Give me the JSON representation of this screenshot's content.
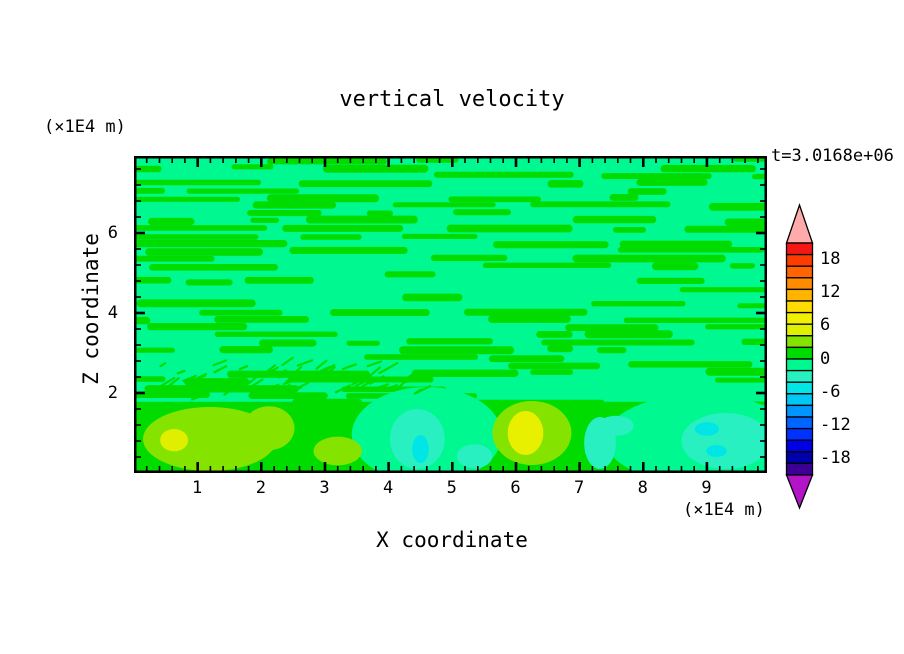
{
  "title": "vertical velocity",
  "time_label": "t=3.0168e+06",
  "y_axis_unit": "(×1E4 m)",
  "x_axis_unit": "(×1E4 m)",
  "x_axis_label": "X coordinate",
  "y_axis_label": "Z coordinate",
  "chart_data": {
    "type": "filled_contour",
    "title": "vertical velocity",
    "time_annotation": "t=3.0168e+06",
    "xlabel": "X coordinate",
    "ylabel": "Z coordinate",
    "axis_unit": "×1E4 m",
    "x_ticks": [
      "1",
      "2",
      "3",
      "4",
      "5",
      "6",
      "7",
      "8",
      "9"
    ],
    "y_ticks": [
      "2",
      "4",
      "6"
    ],
    "x_range": [
      0,
      9.94
    ],
    "y_range": [
      0,
      7.93
    ],
    "x_minor_step": 0.2,
    "y_minor_step": 0.4,
    "grid": false,
    "colorbar": {
      "labels": [
        "18",
        "12",
        "6",
        "0",
        "-6",
        "-12",
        "-18"
      ],
      "colors_top_to_bottom": [
        "#F51616",
        "#FF3C00",
        "#FF6400",
        "#FF8C00",
        "#FFB400",
        "#FFDC00",
        "#F0F000",
        "#DCF000",
        "#84E400",
        "#00DC00",
        "#00F890",
        "#28F0C0",
        "#00E6E6",
        "#00C8F5",
        "#0096FF",
        "#0064FF",
        "#0032FF",
        "#0000E6",
        "#0000AA",
        "#3C0096"
      ],
      "over_arrow_color": "#FFABAB",
      "under_arrow_color": "#B414C8",
      "position": "right"
    },
    "field": {
      "description": "near-zero horizontally-striped vertical velocity aloft with convective plumes below z=1.8e4 m",
      "background_color": "#00F890",
      "streak_color": "#00DC00",
      "band_top_z": 1.78
    },
    "striations": {
      "x0": 0.35,
      "x1": 4.4,
      "z0": 1.85,
      "z1": 2.75
    },
    "features": [
      {
        "name": "downdraft-region-mid",
        "cx": 4.6,
        "cz": 0.95,
        "rx": 1.18,
        "rz": 1.2,
        "color": "#00F890",
        "sign": "negative"
      },
      {
        "name": "downdraft-region-right",
        "cx": 8.9,
        "cz": 0.85,
        "rx": 1.5,
        "rz": 1.12,
        "color": "#00F890",
        "sign": "negative"
      },
      {
        "name": "updraft-plume-left",
        "cx": 1.19,
        "cz": 0.85,
        "rx": 1.05,
        "rz": 0.8,
        "color": "#84E400",
        "sign": "positive"
      },
      {
        "name": "updraft-plume-left-lobe",
        "cx": 2.12,
        "cz": 1.12,
        "rx": 0.4,
        "rz": 0.55,
        "color": "#84E400",
        "sign": "positive"
      },
      {
        "name": "updraft-plume-small",
        "cx": 3.2,
        "cz": 0.55,
        "rx": 0.38,
        "rz": 0.36,
        "color": "#84E400",
        "sign": "positive"
      },
      {
        "name": "updraft-plume-center",
        "cx": 6.25,
        "cz": 1.0,
        "rx": 0.62,
        "rz": 0.8,
        "color": "#84E400",
        "sign": "positive"
      },
      {
        "name": "updraft-core-left",
        "cx": 0.63,
        "cz": 0.82,
        "rx": 0.22,
        "rz": 0.28,
        "color": "#E0EE00",
        "sign": "positive"
      },
      {
        "name": "updraft-core-center",
        "cx": 6.15,
        "cz": 1.0,
        "rx": 0.28,
        "rz": 0.55,
        "color": "#E8F000",
        "sign": "positive"
      },
      {
        "name": "downdraft-blob-mid",
        "cx": 4.45,
        "cz": 0.85,
        "rx": 0.43,
        "rz": 0.75,
        "color": "#28F0C0",
        "sign": "negative"
      },
      {
        "name": "downdraft-patch",
        "cx": 5.35,
        "cz": 0.42,
        "rx": 0.28,
        "rz": 0.3,
        "color": "#28F0C0",
        "sign": "negative"
      },
      {
        "name": "downdraft-swirl-a",
        "cx": 7.32,
        "cz": 0.75,
        "rx": 0.25,
        "rz": 0.65,
        "color": "#28F0C0",
        "sign": "negative"
      },
      {
        "name": "downdraft-swirl-b",
        "cx": 7.57,
        "cz": 1.18,
        "rx": 0.28,
        "rz": 0.25,
        "color": "#28F0C0",
        "sign": "negative"
      },
      {
        "name": "downdraft-blob-right",
        "cx": 9.3,
        "cz": 0.8,
        "rx": 0.7,
        "rz": 0.7,
        "color": "#28F0C0",
        "sign": "negative"
      },
      {
        "name": "downdraft-core-mid",
        "cx": 4.5,
        "cz": 0.6,
        "rx": 0.13,
        "rz": 0.35,
        "color": "#00E6E6",
        "sign": "negative"
      },
      {
        "name": "downdraft-core-right-a",
        "cx": 9.0,
        "cz": 1.1,
        "rx": 0.19,
        "rz": 0.17,
        "color": "#00E6E6",
        "sign": "negative"
      },
      {
        "name": "downdraft-core-right-b",
        "cx": 9.15,
        "cz": 0.55,
        "rx": 0.16,
        "rz": 0.15,
        "color": "#00E6E6",
        "sign": "negative"
      }
    ]
  }
}
